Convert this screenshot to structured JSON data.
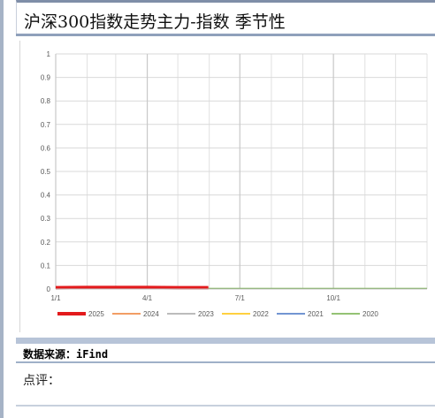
{
  "title": "沪深300指数走势主力-指数 季节性",
  "source_label": "数据来源：iFind",
  "comment_label": "点评：",
  "colors": {
    "accent_bar": "#8fa0bb",
    "grid": "#d9d9d9"
  },
  "chart_data": {
    "type": "line",
    "title": "",
    "xlabel": "",
    "ylabel": "",
    "ylim": [
      0,
      1
    ],
    "y_ticks": [
      "0",
      "0.1",
      "0.2",
      "0.3",
      "0.4",
      "0.5",
      "0.6",
      "0.7",
      "0.8",
      "0.9",
      "1"
    ],
    "x_ticks": [
      "1/1",
      "4/1",
      "7/1",
      "10/1"
    ],
    "x_tick_days": [
      0,
      90,
      181,
      273
    ],
    "x_range_days": [
      0,
      365
    ],
    "grid": true,
    "legend_position": "bottom",
    "series": [
      {
        "name": "2025",
        "color": "#e31a1c",
        "width": 4,
        "points": [
          [
            0,
            0.005
          ],
          [
            30,
            0.006
          ],
          [
            60,
            0.006
          ],
          [
            90,
            0.006
          ],
          [
            120,
            0.005
          ],
          [
            150,
            0.005
          ]
        ]
      },
      {
        "name": "2024",
        "color": "#ed7d31",
        "width": 1.5,
        "points": [
          [
            0,
            0.006
          ],
          [
            60,
            0.007
          ],
          [
            120,
            0.006
          ],
          [
            150,
            0.006
          ]
        ]
      },
      {
        "name": "2023",
        "color": "#a5a5a5",
        "width": 1.5,
        "points": [
          [
            0,
            0.004
          ],
          [
            90,
            0.004
          ],
          [
            150,
            0.004
          ]
        ]
      },
      {
        "name": "2022",
        "color": "#ffc000",
        "width": 1.5,
        "points": [
          [
            0,
            0.004
          ],
          [
            90,
            0.004
          ],
          [
            150,
            0.004
          ]
        ]
      },
      {
        "name": "2021",
        "color": "#4472c4",
        "width": 1.5,
        "points": [
          [
            0,
            0.008
          ],
          [
            40,
            0.008
          ],
          [
            60,
            0.007
          ]
        ]
      },
      {
        "name": "2020",
        "color": "#70ad47",
        "width": 1.5,
        "points": [
          [
            0,
            0.002
          ],
          [
            90,
            0.002
          ],
          [
            181,
            0.002
          ],
          [
            273,
            0.002
          ],
          [
            365,
            0.002
          ]
        ]
      }
    ]
  }
}
